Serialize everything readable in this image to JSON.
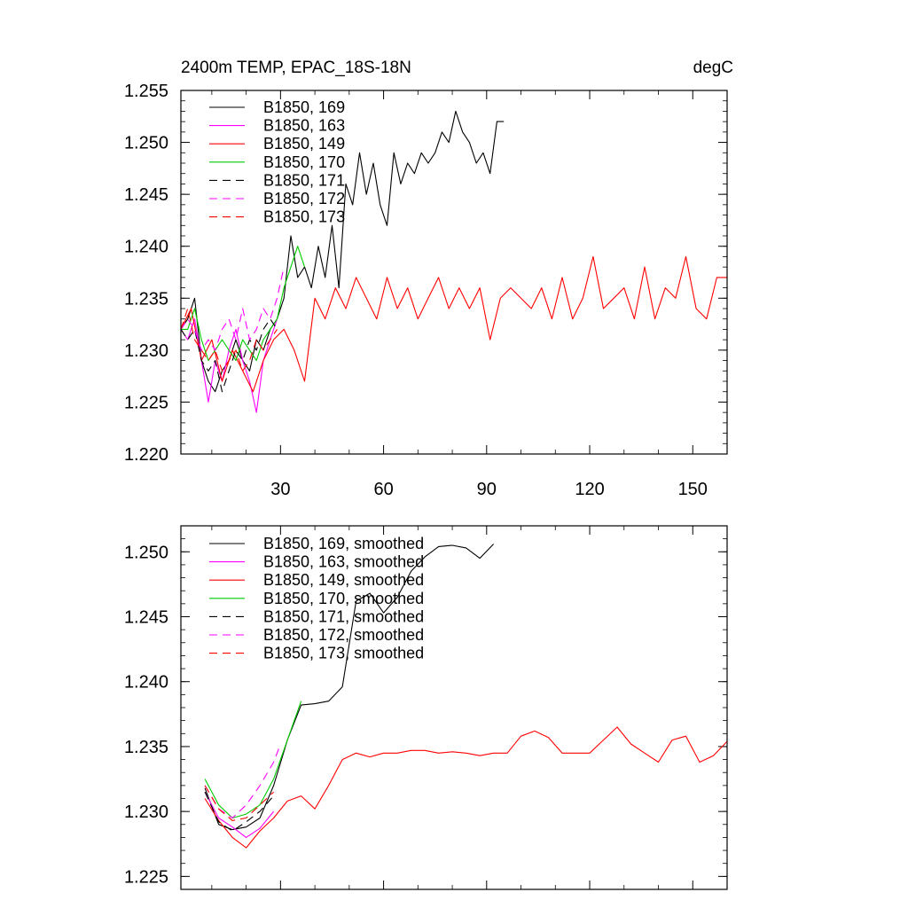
{
  "chart_data": [
    {
      "type": "line",
      "title": "2400m TEMP, EPAC_18S-18N",
      "units": "degC",
      "xlabel": "",
      "ylabel": "",
      "xlim": [
        1,
        160
      ],
      "ylim": [
        1.22,
        1.255
      ],
      "xticks": [
        30,
        60,
        90,
        120,
        150
      ],
      "xtick_labels": [
        "30",
        "60",
        "90",
        "120",
        "150"
      ],
      "yticks": [
        1.22,
        1.225,
        1.23,
        1.235,
        1.24,
        1.245,
        1.25,
        1.255
      ],
      "ytick_labels": [
        "1.220",
        "1.225",
        "1.230",
        "1.235",
        "1.240",
        "1.245",
        "1.250",
        "1.255"
      ],
      "legend_position": "top-left",
      "series": [
        {
          "name": "B1850, 169",
          "color": "#000000",
          "dash": "solid",
          "x": [
            1,
            3,
            5,
            7,
            9,
            11,
            13,
            15,
            17,
            19,
            21,
            23,
            25,
            27,
            29,
            31,
            33,
            35,
            37,
            39,
            41,
            43,
            45,
            47,
            49,
            51,
            53,
            55,
            57,
            59,
            61,
            63,
            65,
            67,
            69,
            71,
            73,
            75,
            77,
            79,
            81,
            83,
            85,
            87,
            89,
            91,
            93,
            95
          ],
          "y": [
            1.232,
            1.233,
            1.235,
            1.229,
            1.227,
            1.226,
            1.228,
            1.229,
            1.231,
            1.229,
            1.228,
            1.231,
            1.23,
            1.232,
            1.233,
            1.235,
            1.241,
            1.237,
            1.238,
            1.236,
            1.24,
            1.237,
            1.242,
            1.236,
            1.246,
            1.244,
            1.249,
            1.245,
            1.248,
            1.244,
            1.242,
            1.249,
            1.246,
            1.248,
            1.247,
            1.249,
            1.248,
            1.249,
            1.251,
            1.25,
            1.253,
            1.251,
            1.25,
            1.248,
            1.249,
            1.247,
            1.252,
            1.252
          ]
        },
        {
          "name": "B1850, 163",
          "color": "#ff00ff",
          "dash": "solid",
          "x": [
            1,
            3,
            5,
            7,
            9,
            11,
            13,
            15,
            17,
            19,
            21,
            23,
            25,
            27,
            29
          ],
          "y": [
            1.232,
            1.231,
            1.233,
            1.229,
            1.225,
            1.229,
            1.227,
            1.23,
            1.232,
            1.229,
            1.227,
            1.224,
            1.229,
            1.231,
            1.233
          ]
        },
        {
          "name": "B1850, 149",
          "color": "#ff0000",
          "dash": "solid",
          "x": [
            1,
            4,
            7,
            10,
            13,
            16,
            19,
            22,
            25,
            28,
            31,
            34,
            37,
            40,
            43,
            46,
            49,
            52,
            55,
            58,
            61,
            64,
            67,
            70,
            73,
            76,
            79,
            82,
            85,
            88,
            91,
            94,
            97,
            100,
            103,
            106,
            109,
            112,
            115,
            118,
            121,
            124,
            127,
            130,
            133,
            136,
            139,
            142,
            145,
            148,
            151,
            154,
            157,
            160
          ],
          "y": [
            1.232,
            1.234,
            1.229,
            1.231,
            1.227,
            1.23,
            1.228,
            1.226,
            1.229,
            1.231,
            1.232,
            1.23,
            1.227,
            1.235,
            1.233,
            1.236,
            1.234,
            1.237,
            1.235,
            1.233,
            1.237,
            1.234,
            1.236,
            1.233,
            1.235,
            1.237,
            1.234,
            1.236,
            1.234,
            1.236,
            1.231,
            1.235,
            1.236,
            1.235,
            1.234,
            1.236,
            1.233,
            1.237,
            1.233,
            1.235,
            1.239,
            1.234,
            1.235,
            1.236,
            1.233,
            1.238,
            1.233,
            1.236,
            1.235,
            1.239,
            1.234,
            1.233,
            1.237,
            1.237
          ]
        },
        {
          "name": "B1850, 170",
          "color": "#00cc00",
          "dash": "solid",
          "x": [
            1,
            3,
            5,
            7,
            9,
            11,
            13,
            15,
            17,
            19,
            21,
            23,
            25,
            27,
            29,
            31,
            33,
            35,
            37
          ],
          "y": [
            1.232,
            1.232,
            1.234,
            1.231,
            1.229,
            1.23,
            1.231,
            1.23,
            1.229,
            1.231,
            1.23,
            1.229,
            1.231,
            1.232,
            1.233,
            1.236,
            1.238,
            1.24,
            1.238
          ]
        },
        {
          "name": "B1850, 171",
          "color": "#000000",
          "dash": "dashed",
          "x": [
            1,
            3,
            5,
            7,
            9,
            11,
            13,
            15,
            17,
            19,
            21,
            23,
            25,
            27,
            29
          ],
          "y": [
            1.232,
            1.231,
            1.232,
            1.229,
            1.228,
            1.229,
            1.226,
            1.228,
            1.23,
            1.229,
            1.231,
            1.23,
            1.232,
            1.233,
            1.232
          ]
        },
        {
          "name": "B1850, 172",
          "color": "#ff00ff",
          "dash": "dashed",
          "x": [
            1,
            3,
            5,
            7,
            9,
            11,
            13,
            15,
            17,
            19,
            21,
            23,
            25,
            27,
            29,
            31
          ],
          "y": [
            1.232,
            1.233,
            1.232,
            1.23,
            1.231,
            1.23,
            1.232,
            1.233,
            1.231,
            1.234,
            1.231,
            1.232,
            1.234,
            1.233,
            1.235,
            1.238
          ]
        },
        {
          "name": "B1850, 173",
          "color": "#ff0000",
          "dash": "dashed",
          "x": [
            1,
            3,
            5,
            7,
            9,
            11,
            13,
            15,
            17,
            19,
            21,
            23,
            25,
            27,
            29
          ],
          "y": [
            1.232,
            1.234,
            1.231,
            1.23,
            1.229,
            1.23,
            1.228,
            1.229,
            1.23,
            1.228,
            1.229,
            1.231,
            1.23,
            1.231,
            1.232
          ]
        }
      ]
    },
    {
      "type": "line",
      "title": "",
      "xlabel": "",
      "ylabel": "",
      "xlim": [
        1,
        160
      ],
      "ylim": [
        1.224,
        1.252
      ],
      "xticks": [
        30,
        60,
        90,
        120,
        150
      ],
      "xtick_labels": [],
      "yticks": [
        1.225,
        1.23,
        1.235,
        1.24,
        1.245,
        1.25
      ],
      "ytick_labels": [
        "1.225",
        "1.230",
        "1.235",
        "1.240",
        "1.245",
        "1.250"
      ],
      "legend_position": "top-left",
      "series": [
        {
          "name": "B1850, 169, smoothed",
          "color": "#000000",
          "dash": "solid",
          "x": [
            8,
            12,
            16,
            20,
            24,
            28,
            32,
            36,
            40,
            44,
            48,
            52,
            56,
            60,
            64,
            68,
            72,
            76,
            80,
            84,
            88,
            92
          ],
          "y": [
            1.2318,
            1.229,
            1.2286,
            1.2288,
            1.2295,
            1.232,
            1.2355,
            1.2382,
            1.2383,
            1.2385,
            1.2396,
            1.2462,
            1.2468,
            1.2453,
            1.2465,
            1.2485,
            1.2496,
            1.2504,
            1.2505,
            1.2503,
            1.2495,
            1.2506
          ]
        },
        {
          "name": "B1850, 163, smoothed",
          "color": "#ff00ff",
          "dash": "solid",
          "x": [
            8,
            12,
            16,
            20,
            24,
            28
          ],
          "y": [
            1.2315,
            1.2295,
            1.2288,
            1.228,
            1.2287,
            1.23
          ]
        },
        {
          "name": "B1850, 149, smoothed",
          "color": "#ff0000",
          "dash": "solid",
          "x": [
            8,
            12,
            16,
            20,
            24,
            28,
            32,
            36,
            40,
            44,
            48,
            52,
            56,
            60,
            64,
            68,
            72,
            76,
            80,
            84,
            88,
            92,
            96,
            100,
            104,
            108,
            112,
            116,
            120,
            124,
            128,
            132,
            136,
            140,
            144,
            148,
            152,
            156,
            160
          ],
          "y": [
            1.231,
            1.2293,
            1.228,
            1.2272,
            1.2285,
            1.2295,
            1.2308,
            1.2312,
            1.2302,
            1.232,
            1.234,
            1.2345,
            1.2342,
            1.2345,
            1.2345,
            1.2347,
            1.2347,
            1.2345,
            1.2346,
            1.2345,
            1.2343,
            1.2345,
            1.2345,
            1.2358,
            1.2362,
            1.2357,
            1.2345,
            1.2345,
            1.2345,
            1.2355,
            1.2365,
            1.2352,
            1.2345,
            1.2338,
            1.2355,
            1.2358,
            1.2338,
            1.2343,
            1.2354
          ]
        },
        {
          "name": "B1850, 170, smoothed",
          "color": "#00cc00",
          "dash": "solid",
          "x": [
            8,
            12,
            16,
            20,
            24,
            28,
            32,
            36
          ],
          "y": [
            1.2325,
            1.2305,
            1.2295,
            1.2298,
            1.2305,
            1.2325,
            1.2355,
            1.2385
          ]
        },
        {
          "name": "B1850, 171, smoothed",
          "color": "#000000",
          "dash": "dashed",
          "x": [
            8,
            12,
            16,
            20,
            24,
            28
          ],
          "y": [
            1.2315,
            1.2292,
            1.2285,
            1.2292,
            1.23,
            1.2312
          ]
        },
        {
          "name": "B1850, 172, smoothed",
          "color": "#ff00ff",
          "dash": "dashed",
          "x": [
            8,
            12,
            16,
            20,
            24,
            28,
            30
          ],
          "y": [
            1.232,
            1.2302,
            1.2295,
            1.2305,
            1.232,
            1.2338,
            1.2352
          ]
        },
        {
          "name": "B1850, 173, smoothed",
          "color": "#ff0000",
          "dash": "dashed",
          "x": [
            8,
            12,
            16,
            20,
            24,
            28
          ],
          "y": [
            1.232,
            1.2302,
            1.2293,
            1.2295,
            1.2305,
            1.2315
          ]
        }
      ]
    }
  ]
}
